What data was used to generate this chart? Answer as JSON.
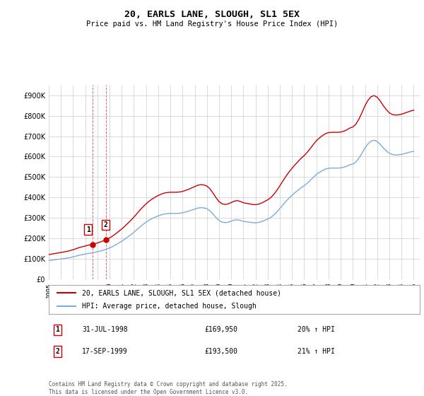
{
  "title": "20, EARLS LANE, SLOUGH, SL1 5EX",
  "subtitle": "Price paid vs. HM Land Registry's House Price Index (HPI)",
  "legend_line1": "20, EARLS LANE, SLOUGH, SL1 5EX (detached house)",
  "legend_line2": "HPI: Average price, detached house, Slough",
  "sale1_date": "31-JUL-1998",
  "sale1_price": "£169,950",
  "sale1_hpi": "20% ↑ HPI",
  "sale2_date": "17-SEP-1999",
  "sale2_price": "£193,500",
  "sale2_hpi": "21% ↑ HPI",
  "footer": "Contains HM Land Registry data © Crown copyright and database right 2025.\nThis data is licensed under the Open Government Licence v3.0.",
  "sale_color": "#cc0000",
  "hpi_color": "#7aacdc",
  "ylim_min": 0,
  "ylim_max": 950000,
  "yticks": [
    0,
    100000,
    200000,
    300000,
    400000,
    500000,
    600000,
    700000,
    800000,
    900000
  ],
  "ytick_labels": [
    "£0",
    "£100K",
    "£200K",
    "£300K",
    "£400K",
    "£500K",
    "£600K",
    "£700K",
    "£800K",
    "£900K"
  ],
  "hpi_years": [
    1995.0,
    1995.25,
    1995.5,
    1995.75,
    1996.0,
    1996.25,
    1996.5,
    1996.75,
    1997.0,
    1997.25,
    1997.5,
    1997.75,
    1998.0,
    1998.25,
    1998.5,
    1998.75,
    1999.0,
    1999.25,
    1999.5,
    1999.75,
    2000.0,
    2000.25,
    2000.5,
    2000.75,
    2001.0,
    2001.25,
    2001.5,
    2001.75,
    2002.0,
    2002.25,
    2002.5,
    2002.75,
    2003.0,
    2003.25,
    2003.5,
    2003.75,
    2004.0,
    2004.25,
    2004.5,
    2004.75,
    2005.0,
    2005.25,
    2005.5,
    2005.75,
    2006.0,
    2006.25,
    2006.5,
    2006.75,
    2007.0,
    2007.25,
    2007.5,
    2007.75,
    2008.0,
    2008.25,
    2008.5,
    2008.75,
    2009.0,
    2009.25,
    2009.5,
    2009.75,
    2010.0,
    2010.25,
    2010.5,
    2010.75,
    2011.0,
    2011.25,
    2011.5,
    2011.75,
    2012.0,
    2012.25,
    2012.5,
    2012.75,
    2013.0,
    2013.25,
    2013.5,
    2013.75,
    2014.0,
    2014.25,
    2014.5,
    2014.75,
    2015.0,
    2015.25,
    2015.5,
    2015.75,
    2016.0,
    2016.25,
    2016.5,
    2016.75,
    2017.0,
    2017.25,
    2017.5,
    2017.75,
    2018.0,
    2018.25,
    2018.5,
    2018.75,
    2019.0,
    2019.25,
    2019.5,
    2019.75,
    2020.0,
    2020.25,
    2020.5,
    2020.75,
    2021.0,
    2021.25,
    2021.5,
    2021.75,
    2022.0,
    2022.25,
    2022.5,
    2022.75,
    2023.0,
    2023.25,
    2023.5,
    2023.75,
    2024.0,
    2024.25,
    2024.5,
    2024.75,
    2025.0
  ],
  "hpi_values": [
    91000,
    93000,
    95000,
    97000,
    99000,
    101000,
    103000,
    106000,
    109000,
    113000,
    117000,
    120000,
    123000,
    126000,
    128000,
    131000,
    134000,
    138000,
    142000,
    147000,
    153000,
    160000,
    168000,
    177000,
    186000,
    196000,
    207000,
    218000,
    230000,
    243000,
    256000,
    268000,
    279000,
    289000,
    297000,
    304000,
    310000,
    315000,
    319000,
    321000,
    322000,
    322000,
    322000,
    323000,
    325000,
    329000,
    333000,
    338000,
    343000,
    348000,
    350000,
    349000,
    345000,
    335000,
    319000,
    302000,
    287000,
    279000,
    277000,
    279000,
    284000,
    289000,
    291000,
    288000,
    283000,
    281000,
    279000,
    277000,
    276000,
    278000,
    282000,
    288000,
    294000,
    302000,
    314000,
    329000,
    346000,
    364000,
    381000,
    397000,
    411000,
    424000,
    436000,
    448000,
    458000,
    470000,
    484000,
    499000,
    513000,
    523000,
    532000,
    539000,
    543000,
    544000,
    544000,
    544000,
    545000,
    548000,
    553000,
    560000,
    564000,
    574000,
    593000,
    617000,
    643000,
    663000,
    676000,
    680000,
    674000,
    660000,
    643000,
    628000,
    616000,
    610000,
    608000,
    609000,
    611000,
    615000,
    619000,
    623000,
    626000
  ],
  "sold_years": [
    1998.58,
    1999.72
  ],
  "sold_prices": [
    169950,
    193500
  ],
  "sale1_vline_x": 1998.58,
  "sale2_vline_x": 1999.72,
  "xmin": 1995.0,
  "xmax": 2025.5,
  "xtick_years": [
    1995,
    1996,
    1997,
    1998,
    1999,
    2000,
    2001,
    2002,
    2003,
    2004,
    2005,
    2006,
    2007,
    2008,
    2009,
    2010,
    2011,
    2012,
    2013,
    2014,
    2015,
    2016,
    2017,
    2018,
    2019,
    2020,
    2021,
    2022,
    2023,
    2024,
    2025
  ],
  "bg_color": "#ffffff",
  "grid_color": "#cccccc"
}
